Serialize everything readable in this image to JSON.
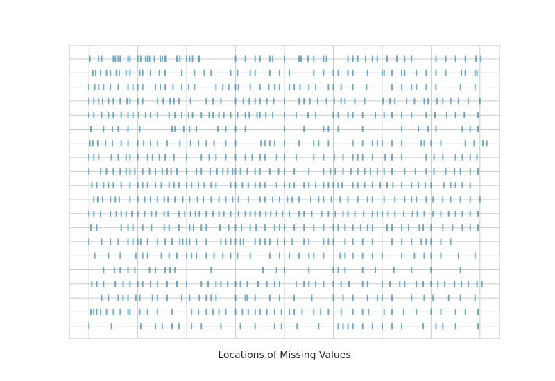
{
  "chart_data": {
    "type": "eventplot",
    "title": "",
    "xlabel": "Locations of Missing Values",
    "ylabel": "",
    "grid": true,
    "tick_labels_visible": false,
    "colors": {
      "marker": "#3a91b6",
      "grid": "#cccccc",
      "frame": "#cccccc",
      "background": "#ffffff"
    },
    "xlim": [
      -20,
      420
    ],
    "row_count": 20,
    "series": [
      {
        "values": [
          1,
          10,
          13,
          25,
          27,
          30,
          32,
          40,
          42,
          50,
          53,
          58,
          60,
          62,
          67,
          73,
          75,
          78,
          79,
          90,
          93,
          100,
          103,
          106,
          112,
          113,
          150,
          160,
          170,
          175,
          185,
          188,
          200,
          215,
          217,
          224,
          230,
          240,
          243,
          265,
          270,
          275,
          283,
          290,
          295,
          305,
          315,
          323,
          330,
          355,
          365,
          375,
          385,
          396,
          401
        ]
      },
      {
        "values": [
          4,
          7,
          12,
          18,
          22,
          28,
          31,
          38,
          42,
          52,
          55,
          63,
          72,
          78,
          95,
          108,
          118,
          125,
          145,
          152,
          165,
          170,
          185,
          195,
          205,
          230,
          240,
          250,
          255,
          265,
          270,
          285,
          300,
          302,
          310,
          320,
          323,
          335,
          345,
          355,
          365,
          381,
          385,
          395,
          397
        ]
      },
      {
        "values": [
          0,
          6,
          10,
          15,
          22,
          30,
          40,
          45,
          50,
          55,
          68,
          73,
          78,
          86,
          95,
          102,
          108,
          130,
          137,
          143,
          150,
          153,
          165,
          175,
          184,
          190,
          195,
          205,
          210,
          216,
          225,
          232,
          245,
          250,
          258,
          270,
          284,
          310,
          320,
          330,
          335,
          345,
          355,
          380,
          395
        ]
      },
      {
        "values": [
          0,
          5,
          10,
          14,
          20,
          25,
          32,
          39,
          42,
          50,
          55,
          70,
          76,
          83,
          87,
          92,
          104,
          120,
          127,
          135,
          150,
          158,
          164,
          170,
          175,
          182,
          189,
          200,
          215,
          220,
          226,
          234,
          243,
          251,
          258,
          262,
          272,
          282,
          301,
          308,
          313,
          325,
          333,
          343,
          347,
          356,
          362,
          370,
          378,
          388,
          400
        ]
      },
      {
        "values": [
          0,
          5,
          13,
          20,
          25,
          33,
          40,
          45,
          51,
          58,
          63,
          70,
          82,
          88,
          95,
          102,
          106,
          115,
          123,
          127,
          133,
          138,
          145,
          152,
          160,
          164,
          172,
          175,
          181,
          188,
          200,
          212,
          224,
          232,
          250,
          255,
          265,
          270,
          280,
          293,
          302,
          310,
          320,
          330,
          345,
          354,
          366,
          375,
          384,
          398
        ]
      },
      {
        "values": [
          2,
          15,
          24,
          30,
          40,
          52,
          85,
          88,
          97,
          103,
          110,
          132,
          140,
          150,
          160,
          200,
          220,
          240,
          245,
          255,
          280,
          320,
          337,
          347,
          355,
          382,
          390,
          398
        ]
      },
      {
        "values": [
          1,
          4,
          9,
          17,
          24,
          33,
          40,
          50,
          56,
          63,
          70,
          80,
          93,
          104,
          112,
          120,
          128,
          140,
          150,
          176,
          180,
          185,
          190,
          200,
          215,
          230,
          235,
          245,
          270,
          280,
          290,
          295,
          300,
          310,
          320,
          340,
          343,
          350,
          360,
          385,
          394,
          403,
          407
        ]
      },
      {
        "values": [
          0,
          5,
          10,
          23,
          30,
          38,
          42,
          50,
          60,
          65,
          72,
          78,
          87,
          100,
          115,
          123,
          130,
          140,
          150,
          160,
          167,
          175,
          180,
          192,
          200,
          212,
          230,
          240,
          251,
          260,
          270,
          275,
          280,
          290,
          303,
          310,
          320,
          345,
          353,
          362,
          375,
          382,
          390,
          397
        ]
      },
      {
        "values": [
          0,
          12,
          18,
          25,
          32,
          38,
          42,
          47,
          55,
          62,
          68,
          75,
          80,
          84,
          90,
          100,
          110,
          115,
          124,
          131,
          137,
          142,
          147,
          150,
          155,
          162,
          170,
          175,
          185,
          194,
          200,
          210,
          225,
          240,
          247,
          252,
          260,
          268,
          275,
          282,
          288,
          295,
          302,
          310,
          323,
          334,
          345,
          353,
          365,
          374,
          380,
          390,
          398
        ]
      },
      {
        "values": [
          3,
          8,
          15,
          20,
          25,
          33,
          42,
          50,
          55,
          60,
          68,
          74,
          82,
          87,
          92,
          100,
          105,
          112,
          118,
          125,
          130,
          145,
          150,
          157,
          163,
          170,
          175,
          180,
          192,
          200,
          205,
          210,
          220,
          225,
          232,
          240,
          245,
          250,
          255,
          259,
          270,
          275,
          282,
          290,
          298,
          305,
          311,
          320,
          330,
          337,
          344,
          350,
          363,
          370,
          375,
          382,
          390
        ]
      },
      {
        "values": [
          5,
          9,
          14,
          22,
          27,
          31,
          42,
          50,
          57,
          63,
          70,
          77,
          81,
          88,
          96,
          103,
          111,
          117,
          125,
          133,
          140,
          147,
          153,
          163,
          175,
          180,
          188,
          195,
          203,
          208,
          215,
          227,
          235,
          240,
          248,
          257,
          265,
          275,
          285,
          290,
          302,
          313,
          323,
          330,
          335,
          345,
          352,
          362,
          370,
          380,
          390,
          400
        ]
      },
      {
        "values": [
          0,
          5,
          12,
          22,
          28,
          33,
          38,
          44,
          50,
          57,
          64,
          69,
          77,
          81,
          92,
          98,
          104,
          109,
          113,
          120,
          127,
          133,
          138,
          145,
          153,
          160,
          165,
          170,
          175,
          181,
          186,
          192,
          198,
          205,
          215,
          220,
          228,
          238,
          245,
          252,
          260,
          265,
          272,
          281,
          290,
          295,
          300,
          306,
          313,
          322,
          331,
          336,
          343,
          352,
          360,
          368,
          375,
          382,
          390,
          398
        ]
      },
      {
        "values": [
          2,
          8,
          33,
          40,
          45,
          55,
          64,
          77,
          82,
          92,
          103,
          107,
          115,
          120,
          134,
          143,
          150,
          156,
          165,
          171,
          180,
          190,
          195,
          200,
          210,
          220,
          230,
          240,
          250,
          255,
          262,
          270,
          278,
          285,
          290,
          305,
          310,
          320,
          327,
          338,
          342,
          350,
          362,
          372,
          382,
          390,
          398
        ]
      },
      {
        "values": [
          0,
          13,
          22,
          30,
          40,
          45,
          50,
          53,
          60,
          70,
          78,
          85,
          93,
          96,
          100,
          103,
          110,
          120,
          135,
          140,
          145,
          150,
          155,
          158,
          170,
          175,
          180,
          185,
          193,
          200,
          208,
          220,
          225,
          240,
          245,
          250,
          262,
          270,
          280,
          290,
          310,
          320,
          330,
          340,
          345,
          350,
          360,
          370
        ]
      },
      {
        "values": [
          6,
          20,
          32,
          48,
          55,
          60,
          74,
          82,
          90,
          100,
          105,
          110,
          120,
          128,
          137,
          145,
          152,
          165,
          185,
          195,
          205,
          215,
          225,
          230,
          240,
          257,
          262,
          270,
          280,
          290,
          300,
          320,
          333,
          343,
          350,
          360,
          378,
          395
        ]
      },
      {
        "values": [
          15,
          26,
          32,
          40,
          47,
          62,
          68,
          78,
          83,
          88,
          125,
          178,
          192,
          200,
          225,
          250,
          255,
          262,
          280,
          293,
          312,
          330,
          350,
          380
        ]
      },
      {
        "values": [
          3,
          8,
          15,
          27,
          35,
          42,
          50,
          55,
          63,
          70,
          80,
          90,
          100,
          115,
          122,
          130,
          135,
          142,
          150,
          155,
          162,
          173,
          182,
          190,
          195,
          212,
          220,
          225,
          232,
          240,
          250,
          258,
          266,
          280,
          285,
          300,
          308,
          318,
          323,
          335,
          342,
          350,
          357,
          364,
          374,
          381,
          388,
          397,
          402
        ]
      },
      {
        "values": [
          13,
          20,
          30,
          35,
          40,
          48,
          52,
          65,
          70,
          80,
          95,
          103,
          113,
          120,
          125,
          130,
          150,
          160,
          162,
          170,
          185,
          195,
          210,
          228,
          250,
          260,
          270,
          285,
          295,
          300,
          310,
          330,
          343,
          352,
          368,
          380,
          395
        ]
      },
      {
        "values": [
          2,
          5,
          8,
          12,
          18,
          25,
          32,
          40,
          42,
          52,
          60,
          70,
          85,
          105,
          112,
          120,
          127,
          133,
          140,
          150,
          157,
          163,
          170,
          175,
          182,
          190,
          197,
          205,
          210,
          218,
          230,
          237,
          245,
          258,
          270,
          280,
          286,
          302,
          310,
          322,
          335,
          350,
          360,
          375,
          385,
          398
        ]
      },
      {
        "values": [
          0,
          23,
          53,
          68,
          75,
          85,
          92,
          105,
          115,
          135,
          155,
          170,
          190,
          197,
          213,
          235,
          255,
          260,
          265,
          270,
          280,
          290,
          300,
          310,
          320,
          342,
          355,
          362,
          375,
          398
        ]
      }
    ]
  }
}
